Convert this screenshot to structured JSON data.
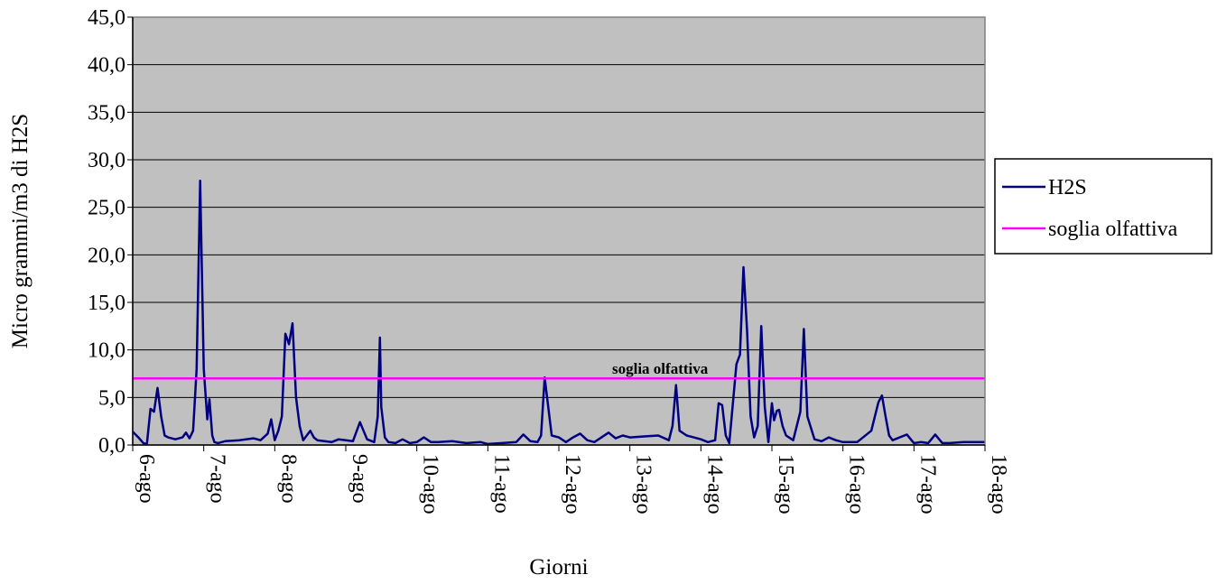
{
  "chart_data": {
    "type": "line",
    "xlabel": "Giorni",
    "ylabel": "Micro grammi/m3 di H2S",
    "ylim": [
      0,
      45
    ],
    "yticks": [
      "0,0",
      "5,0",
      "10,0",
      "15,0",
      "20,0",
      "25,0",
      "30,0",
      "35,0",
      "40,0",
      "45,0"
    ],
    "categories": [
      "6-ago",
      "7-ago",
      "8-ago",
      "9-ago",
      "10-ago",
      "11-ago",
      "12-ago",
      "13-ago",
      "14-ago",
      "15-ago",
      "16-ago",
      "17-ago",
      "18-ago"
    ],
    "xlim": [
      0,
      12
    ],
    "grid": "horizontal",
    "legend_position": "right",
    "annotation": "soglia olfattiva",
    "series": [
      {
        "name": "H2S",
        "color": "#000080",
        "x": [
          0,
          0.08,
          0.15,
          0.2,
          0.25,
          0.3,
          0.35,
          0.4,
          0.45,
          0.5,
          0.6,
          0.7,
          0.75,
          0.8,
          0.85,
          0.9,
          0.95,
          1.0,
          1.05,
          1.08,
          1.12,
          1.15,
          1.2,
          1.3,
          1.5,
          1.7,
          1.8,
          1.9,
          1.95,
          2.0,
          2.05,
          2.1,
          2.15,
          2.2,
          2.25,
          2.3,
          2.35,
          2.4,
          2.5,
          2.55,
          2.6,
          2.7,
          2.8,
          2.9,
          3.0,
          3.1,
          3.2,
          3.3,
          3.4,
          3.45,
          3.48,
          3.5,
          3.55,
          3.6,
          3.7,
          3.8,
          3.9,
          4.0,
          4.1,
          4.2,
          4.3,
          4.5,
          4.7,
          4.9,
          5.0,
          5.2,
          5.4,
          5.5,
          5.6,
          5.7,
          5.75,
          5.8,
          5.9,
          6.0,
          6.1,
          6.2,
          6.3,
          6.4,
          6.5,
          6.6,
          6.7,
          6.8,
          6.9,
          7.0,
          7.2,
          7.4,
          7.55,
          7.6,
          7.65,
          7.7,
          7.8,
          7.9,
          8.0,
          8.1,
          8.2,
          8.25,
          8.3,
          8.35,
          8.4,
          8.5,
          8.55,
          8.6,
          8.65,
          8.7,
          8.75,
          8.8,
          8.85,
          8.9,
          8.95,
          9.0,
          9.03,
          9.07,
          9.1,
          9.15,
          9.2,
          9.3,
          9.4,
          9.45,
          9.5,
          9.6,
          9.7,
          9.8,
          9.9,
          10.0,
          10.2,
          10.4,
          10.5,
          10.55,
          10.6,
          10.65,
          10.7,
          10.8,
          10.9,
          11.0,
          11.1,
          11.2,
          11.3,
          11.4,
          11.5,
          11.7,
          11.9,
          12.0
        ],
        "values": [
          1.4,
          0.8,
          0.2,
          0.1,
          3.8,
          3.5,
          6.0,
          3.0,
          1.0,
          0.8,
          0.6,
          0.8,
          1.3,
          0.7,
          1.5,
          8.0,
          27.8,
          8.0,
          2.7,
          4.8,
          1.0,
          0.3,
          0.2,
          0.4,
          0.5,
          0.7,
          0.5,
          1.2,
          2.7,
          0.5,
          1.5,
          3.0,
          11.7,
          10.6,
          12.8,
          5.0,
          2.0,
          0.5,
          1.5,
          0.8,
          0.5,
          0.4,
          0.3,
          0.6,
          0.5,
          0.4,
          2.4,
          0.6,
          0.3,
          3.0,
          11.3,
          4.0,
          0.8,
          0.3,
          0.2,
          0.6,
          0.2,
          0.3,
          0.8,
          0.3,
          0.3,
          0.4,
          0.2,
          0.3,
          0.1,
          0.2,
          0.3,
          1.1,
          0.4,
          0.3,
          1.0,
          7.1,
          1.0,
          0.8,
          0.3,
          0.8,
          1.2,
          0.5,
          0.3,
          0.8,
          1.3,
          0.7,
          1.0,
          0.8,
          0.9,
          1.0,
          0.5,
          2.0,
          6.3,
          1.5,
          1.0,
          0.8,
          0.6,
          0.3,
          0.5,
          4.4,
          4.2,
          1.0,
          0.2,
          8.5,
          9.5,
          18.7,
          12.0,
          3.0,
          0.8,
          2.0,
          12.5,
          4.0,
          0.3,
          4.4,
          2.6,
          3.6,
          3.7,
          2.0,
          1.0,
          0.5,
          3.5,
          12.2,
          3.0,
          0.6,
          0.4,
          0.8,
          0.5,
          0.3,
          0.3,
          1.5,
          4.5,
          5.2,
          3.0,
          1.0,
          0.5,
          0.8,
          1.1,
          0.2,
          0.3,
          0.2,
          1.1,
          0.2,
          0.2,
          0.3,
          0.3,
          0.3
        ]
      },
      {
        "name": "soglia olfattiva",
        "color": "#FF00FF",
        "x": [
          0,
          12
        ],
        "values": [
          7.0,
          7.0
        ]
      }
    ]
  }
}
